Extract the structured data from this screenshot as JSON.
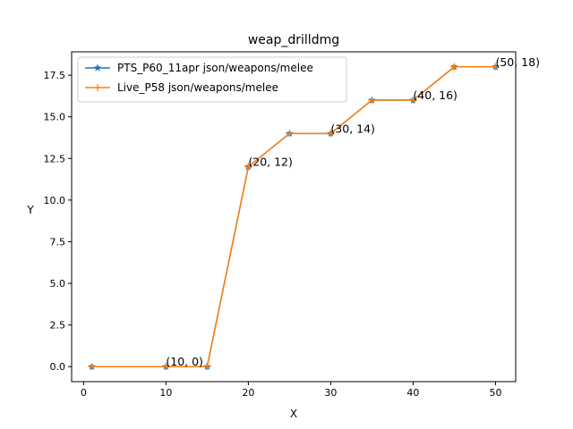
{
  "chart_data": {
    "type": "line",
    "title": "weap_drilldmg",
    "xlabel": "X",
    "ylabel": "Y",
    "xlim": [
      -1.45,
      52.45
    ],
    "ylim": [
      -0.9,
      18.9
    ],
    "xticks": [
      0,
      10,
      20,
      30,
      40,
      50
    ],
    "xtick_labels": [
      "0",
      "10",
      "20",
      "30",
      "40",
      "50"
    ],
    "yticks": [
      0,
      2.5,
      5,
      7.5,
      10,
      12.5,
      15,
      17.5
    ],
    "ytick_labels": [
      "0.0",
      "2.5",
      "5.0",
      "7.5",
      "10.0",
      "12.5",
      "15.0",
      "17.5"
    ],
    "grid": false,
    "legend_position": "upper-left",
    "x": [
      1,
      10,
      15,
      20,
      25,
      30,
      35,
      40,
      45,
      50
    ],
    "series": [
      {
        "name": "PTS_P60_11apr json/weapons/melee",
        "color": "#1f77b4",
        "marker": "star",
        "values": [
          0,
          0,
          0,
          12,
          14,
          14,
          16,
          16,
          18,
          18
        ]
      },
      {
        "name": "Live_P58 json/weapons/melee",
        "color": "#ff7f0e",
        "marker": "plus",
        "values": [
          0,
          0,
          0,
          12,
          14,
          14,
          16,
          16,
          18,
          18
        ]
      }
    ],
    "annotations": [
      {
        "text": "(10, 0)",
        "x": 10,
        "y": 0
      },
      {
        "text": "(20, 12)",
        "x": 20,
        "y": 12
      },
      {
        "text": "(30, 14)",
        "x": 30,
        "y": 14
      },
      {
        "text": "(40, 16)",
        "x": 40,
        "y": 16
      },
      {
        "text": "(50, 18)",
        "x": 50,
        "y": 18
      }
    ]
  }
}
